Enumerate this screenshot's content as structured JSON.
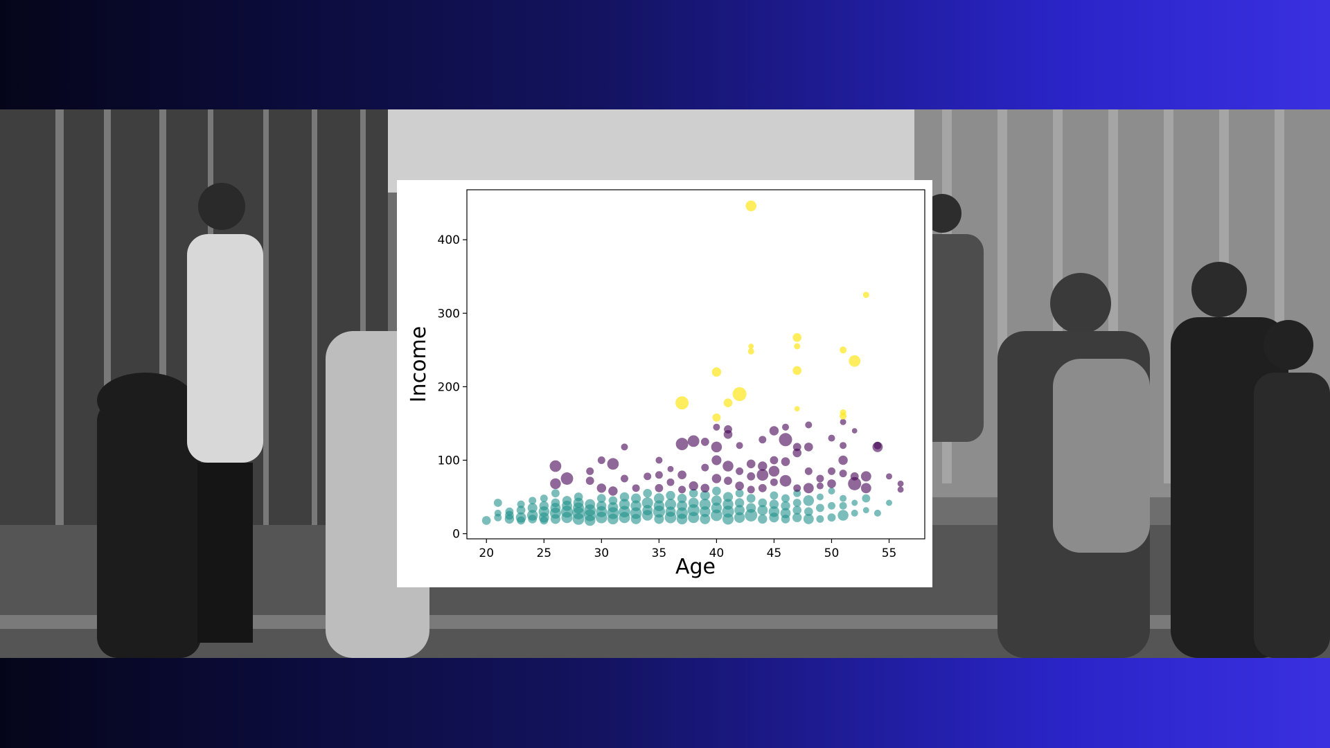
{
  "chart_data": {
    "type": "scatter",
    "title": "",
    "xlabel": "Age",
    "ylabel": "Income",
    "xlim": [
      18.3,
      58.1
    ],
    "ylim": [
      -7,
      468
    ],
    "xticks": [
      20,
      25,
      30,
      35,
      40,
      45,
      50,
      55
    ],
    "yticks": [
      0,
      100,
      200,
      300,
      400
    ],
    "grid": false,
    "legend": "none",
    "colors": {
      "teal": "#21918c",
      "purple": "#440154",
      "yellow": "#fde725"
    },
    "points": [
      [
        20,
        18,
        40,
        "teal"
      ],
      [
        21,
        22,
        30,
        "teal"
      ],
      [
        21,
        28,
        25,
        "teal"
      ],
      [
        21,
        42,
        35,
        "teal"
      ],
      [
        22,
        20,
        45,
        "teal"
      ],
      [
        22,
        30,
        35,
        "teal"
      ],
      [
        22,
        25,
        40,
        "teal"
      ],
      [
        23,
        22,
        55,
        "teal"
      ],
      [
        23,
        32,
        40,
        "teal"
      ],
      [
        23,
        40,
        30,
        "teal"
      ],
      [
        23,
        18,
        35,
        "teal"
      ],
      [
        24,
        25,
        60,
        "teal"
      ],
      [
        24,
        35,
        50,
        "teal"
      ],
      [
        24,
        20,
        40,
        "teal"
      ],
      [
        24,
        45,
        30,
        "teal"
      ],
      [
        25,
        22,
        55,
        "teal"
      ],
      [
        25,
        30,
        60,
        "teal"
      ],
      [
        25,
        38,
        45,
        "teal"
      ],
      [
        25,
        18,
        35,
        "teal"
      ],
      [
        25,
        48,
        30,
        "teal"
      ],
      [
        26,
        20,
        50,
        "teal"
      ],
      [
        26,
        28,
        65,
        "teal"
      ],
      [
        26,
        35,
        55,
        "teal"
      ],
      [
        26,
        42,
        40,
        "teal"
      ],
      [
        26,
        55,
        35,
        "teal"
      ],
      [
        26,
        92,
        70,
        "purple"
      ],
      [
        26,
        68,
        60,
        "purple"
      ],
      [
        27,
        22,
        65,
        "teal"
      ],
      [
        27,
        30,
        75,
        "teal"
      ],
      [
        27,
        38,
        55,
        "teal"
      ],
      [
        27,
        45,
        45,
        "teal"
      ],
      [
        27,
        75,
        80,
        "purple"
      ],
      [
        28,
        20,
        70,
        "teal"
      ],
      [
        28,
        28,
        80,
        "teal"
      ],
      [
        28,
        35,
        65,
        "teal"
      ],
      [
        28,
        42,
        55,
        "teal"
      ],
      [
        28,
        50,
        40,
        "teal"
      ],
      [
        29,
        18,
        60,
        "teal"
      ],
      [
        29,
        25,
        75,
        "teal"
      ],
      [
        29,
        32,
        70,
        "teal"
      ],
      [
        29,
        40,
        55,
        "teal"
      ],
      [
        29,
        85,
        30,
        "purple"
      ],
      [
        29,
        72,
        35,
        "purple"
      ],
      [
        30,
        22,
        70,
        "teal"
      ],
      [
        30,
        30,
        65,
        "teal"
      ],
      [
        30,
        38,
        50,
        "teal"
      ],
      [
        30,
        48,
        40,
        "teal"
      ],
      [
        30,
        62,
        45,
        "purple"
      ],
      [
        30,
        100,
        30,
        "purple"
      ],
      [
        31,
        20,
        60,
        "teal"
      ],
      [
        31,
        28,
        75,
        "teal"
      ],
      [
        31,
        36,
        55,
        "teal"
      ],
      [
        31,
        45,
        40,
        "teal"
      ],
      [
        31,
        58,
        45,
        "purple"
      ],
      [
        31,
        95,
        70,
        "purple"
      ],
      [
        32,
        22,
        65,
        "teal"
      ],
      [
        32,
        30,
        70,
        "teal"
      ],
      [
        32,
        40,
        60,
        "teal"
      ],
      [
        32,
        50,
        45,
        "teal"
      ],
      [
        32,
        75,
        30,
        "purple"
      ],
      [
        32,
        118,
        25,
        "purple"
      ],
      [
        33,
        20,
        55,
        "teal"
      ],
      [
        33,
        28,
        70,
        "teal"
      ],
      [
        33,
        38,
        60,
        "teal"
      ],
      [
        33,
        48,
        50,
        "teal"
      ],
      [
        33,
        62,
        30,
        "purple"
      ],
      [
        34,
        25,
        60,
        "teal"
      ],
      [
        34,
        32,
        55,
        "teal"
      ],
      [
        34,
        42,
        65,
        "teal"
      ],
      [
        34,
        55,
        40,
        "teal"
      ],
      [
        34,
        78,
        30,
        "purple"
      ],
      [
        35,
        20,
        50,
        "teal"
      ],
      [
        35,
        30,
        75,
        "teal"
      ],
      [
        35,
        38,
        60,
        "teal"
      ],
      [
        35,
        48,
        55,
        "teal"
      ],
      [
        35,
        62,
        35,
        "purple"
      ],
      [
        35,
        80,
        30,
        "purple"
      ],
      [
        35,
        100,
        25,
        "purple"
      ],
      [
        36,
        22,
        70,
        "teal"
      ],
      [
        36,
        30,
        55,
        "teal"
      ],
      [
        36,
        40,
        65,
        "teal"
      ],
      [
        36,
        52,
        45,
        "teal"
      ],
      [
        36,
        70,
        30,
        "purple"
      ],
      [
        36,
        88,
        20,
        "purple"
      ],
      [
        37,
        20,
        60,
        "teal"
      ],
      [
        37,
        28,
        70,
        "teal"
      ],
      [
        37,
        38,
        55,
        "teal"
      ],
      [
        37,
        48,
        45,
        "teal"
      ],
      [
        37,
        60,
        30,
        "purple"
      ],
      [
        37,
        80,
        40,
        "purple"
      ],
      [
        37,
        122,
        80,
        "purple"
      ],
      [
        37,
        178,
        90,
        "yellow"
      ],
      [
        38,
        22,
        65,
        "teal"
      ],
      [
        38,
        32,
        75,
        "teal"
      ],
      [
        38,
        42,
        55,
        "teal"
      ],
      [
        38,
        55,
        40,
        "teal"
      ],
      [
        38,
        65,
        45,
        "purple"
      ],
      [
        38,
        126,
        70,
        "purple"
      ],
      [
        39,
        20,
        55,
        "teal"
      ],
      [
        39,
        30,
        60,
        "teal"
      ],
      [
        39,
        40,
        65,
        "teal"
      ],
      [
        39,
        52,
        50,
        "teal"
      ],
      [
        39,
        62,
        40,
        "purple"
      ],
      [
        39,
        90,
        30,
        "purple"
      ],
      [
        39,
        125,
        35,
        "purple"
      ],
      [
        40,
        25,
        70,
        "teal"
      ],
      [
        40,
        35,
        60,
        "teal"
      ],
      [
        40,
        45,
        55,
        "teal"
      ],
      [
        40,
        58,
        40,
        "teal"
      ],
      [
        40,
        75,
        45,
        "purple"
      ],
      [
        40,
        100,
        50,
        "purple"
      ],
      [
        40,
        118,
        60,
        "purple"
      ],
      [
        40,
        145,
        25,
        "purple"
      ],
      [
        40,
        158,
        35,
        "yellow"
      ],
      [
        40,
        220,
        45,
        "yellow"
      ],
      [
        41,
        20,
        65,
        "teal"
      ],
      [
        41,
        30,
        75,
        "teal"
      ],
      [
        41,
        40,
        60,
        "teal"
      ],
      [
        41,
        50,
        50,
        "teal"
      ],
      [
        41,
        72,
        35,
        "purple"
      ],
      [
        41,
        92,
        60,
        "purple"
      ],
      [
        41,
        135,
        40,
        "purple"
      ],
      [
        41,
        142,
        35,
        "purple"
      ],
      [
        41,
        178,
        40,
        "yellow"
      ],
      [
        42,
        22,
        60,
        "teal"
      ],
      [
        42,
        32,
        55,
        "teal"
      ],
      [
        42,
        42,
        45,
        "teal"
      ],
      [
        42,
        55,
        35,
        "teal"
      ],
      [
        42,
        65,
        40,
        "purple"
      ],
      [
        42,
        85,
        30,
        "purple"
      ],
      [
        42,
        120,
        25,
        "purple"
      ],
      [
        42,
        190,
        100,
        "yellow"
      ],
      [
        43,
        25,
        80,
        "teal"
      ],
      [
        43,
        35,
        50,
        "teal"
      ],
      [
        43,
        48,
        40,
        "teal"
      ],
      [
        43,
        60,
        30,
        "purple"
      ],
      [
        43,
        78,
        35,
        "purple"
      ],
      [
        43,
        95,
        40,
        "purple"
      ],
      [
        43,
        248,
        20,
        "yellow"
      ],
      [
        43,
        255,
        15,
        "yellow"
      ],
      [
        43,
        446,
        60,
        "yellow"
      ],
      [
        44,
        20,
        45,
        "teal"
      ],
      [
        44,
        32,
        55,
        "teal"
      ],
      [
        44,
        42,
        40,
        "teal"
      ],
      [
        44,
        62,
        35,
        "purple"
      ],
      [
        44,
        80,
        70,
        "purple"
      ],
      [
        44,
        92,
        45,
        "purple"
      ],
      [
        44,
        128,
        30,
        "purple"
      ],
      [
        45,
        22,
        50,
        "teal"
      ],
      [
        45,
        30,
        60,
        "teal"
      ],
      [
        45,
        40,
        45,
        "teal"
      ],
      [
        45,
        52,
        35,
        "teal"
      ],
      [
        45,
        70,
        30,
        "purple"
      ],
      [
        45,
        85,
        60,
        "purple"
      ],
      [
        45,
        100,
        35,
        "purple"
      ],
      [
        45,
        140,
        45,
        "purple"
      ],
      [
        46,
        20,
        40,
        "teal"
      ],
      [
        46,
        28,
        55,
        "teal"
      ],
      [
        46,
        38,
        45,
        "teal"
      ],
      [
        46,
        48,
        35,
        "teal"
      ],
      [
        46,
        72,
        70,
        "purple"
      ],
      [
        46,
        98,
        40,
        "purple"
      ],
      [
        46,
        128,
        90,
        "purple"
      ],
      [
        46,
        145,
        25,
        "purple"
      ],
      [
        47,
        22,
        45,
        "teal"
      ],
      [
        47,
        32,
        40,
        "teal"
      ],
      [
        47,
        42,
        35,
        "teal"
      ],
      [
        47,
        55,
        30,
        "teal"
      ],
      [
        47,
        62,
        30,
        "purple"
      ],
      [
        47,
        110,
        40,
        "purple"
      ],
      [
        47,
        118,
        35,
        "purple"
      ],
      [
        47,
        170,
        15,
        "yellow"
      ],
      [
        47,
        222,
        40,
        "yellow"
      ],
      [
        47,
        255,
        20,
        "yellow"
      ],
      [
        47,
        267,
        40,
        "yellow"
      ],
      [
        48,
        20,
        55,
        "teal"
      ],
      [
        48,
        30,
        40,
        "teal"
      ],
      [
        48,
        45,
        60,
        "teal"
      ],
      [
        48,
        62,
        55,
        "purple"
      ],
      [
        48,
        85,
        30,
        "purple"
      ],
      [
        48,
        118,
        40,
        "purple"
      ],
      [
        48,
        148,
        25,
        "purple"
      ],
      [
        49,
        20,
        30,
        "teal"
      ],
      [
        49,
        35,
        35,
        "teal"
      ],
      [
        49,
        50,
        25,
        "teal"
      ],
      [
        49,
        65,
        25,
        "purple"
      ],
      [
        49,
        75,
        30,
        "purple"
      ],
      [
        50,
        22,
        35,
        "teal"
      ],
      [
        50,
        38,
        30,
        "teal"
      ],
      [
        50,
        58,
        25,
        "teal"
      ],
      [
        50,
        68,
        40,
        "purple"
      ],
      [
        50,
        85,
        30,
        "purple"
      ],
      [
        50,
        130,
        25,
        "purple"
      ],
      [
        51,
        25,
        60,
        "teal"
      ],
      [
        51,
        38,
        30,
        "teal"
      ],
      [
        51,
        48,
        25,
        "teal"
      ],
      [
        51,
        82,
        30,
        "purple"
      ],
      [
        51,
        100,
        45,
        "purple"
      ],
      [
        51,
        120,
        25,
        "purple"
      ],
      [
        51,
        152,
        20,
        "purple"
      ],
      [
        51,
        160,
        25,
        "yellow"
      ],
      [
        51,
        165,
        20,
        "yellow"
      ],
      [
        51,
        250,
        25,
        "yellow"
      ],
      [
        52,
        28,
        25,
        "teal"
      ],
      [
        52,
        42,
        20,
        "teal"
      ],
      [
        52,
        68,
        90,
        "purple"
      ],
      [
        52,
        78,
        35,
        "purple"
      ],
      [
        52,
        140,
        15,
        "purple"
      ],
      [
        52,
        235,
        70,
        "yellow"
      ],
      [
        53,
        32,
        20,
        "teal"
      ],
      [
        53,
        48,
        35,
        "teal"
      ],
      [
        53,
        62,
        55,
        "purple"
      ],
      [
        53,
        78,
        55,
        "purple"
      ],
      [
        53,
        325,
        20,
        "yellow"
      ],
      [
        54,
        28,
        25,
        "teal"
      ],
      [
        54,
        118,
        55,
        "purple"
      ],
      [
        54,
        120,
        30,
        "purple"
      ],
      [
        55,
        42,
        20,
        "teal"
      ],
      [
        55,
        78,
        20,
        "purple"
      ],
      [
        56,
        60,
        20,
        "purple"
      ],
      [
        56,
        68,
        20,
        "purple"
      ]
    ]
  }
}
